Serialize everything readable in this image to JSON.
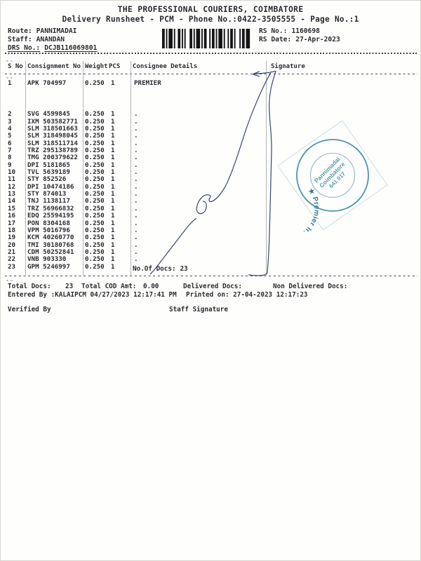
{
  "header": {
    "company": "THE PROFESSIONAL COURIERS, COIMBATORE",
    "subtitle": "Delivery Runsheet - PCM - Phone No.:0422-3505555 - Page No.:1",
    "route_label": "Route:",
    "route_value": "PANNIMADAI",
    "staff_label": "Staff:",
    "staff_value": "ANANDAN",
    "drs_label": "DRS No.:",
    "drs_value": "DCJB116069801",
    "rs_no_label": "RS No.:",
    "rs_no_value": "1160698",
    "rs_date_label": "RS Date:",
    "rs_date_value": "27-Apr-2023"
  },
  "table": {
    "columns": {
      "s_no": "S No",
      "consignment": "Consignment No",
      "weight": "Weight",
      "pcs": "PCS",
      "consignee": "Consignee Details",
      "signature": "Signature"
    },
    "rows": [
      {
        "s_no": "1",
        "consignment": "APK 704997",
        "weight": "0.250",
        "pcs": "1",
        "consignee": "PREMIER"
      },
      {
        "s_no": "2",
        "consignment": "SVG 4599845",
        "weight": "0.250",
        "pcs": "1",
        "consignee": "."
      },
      {
        "s_no": "3",
        "consignment": "IXM 503582771",
        "weight": "0.250",
        "pcs": "1",
        "consignee": "."
      },
      {
        "s_no": "4",
        "consignment": "SLM 318501663",
        "weight": "0.250",
        "pcs": "1",
        "consignee": "."
      },
      {
        "s_no": "5",
        "consignment": "SLM 318498045",
        "weight": "0.250",
        "pcs": "1",
        "consignee": "."
      },
      {
        "s_no": "6",
        "consignment": "SLM 318511714",
        "weight": "0.250",
        "pcs": "1",
        "consignee": "."
      },
      {
        "s_no": "7",
        "consignment": "TRZ 295138789",
        "weight": "0.250",
        "pcs": "1",
        "consignee": "."
      },
      {
        "s_no": "8",
        "consignment": "TMG 200379622",
        "weight": "0.250",
        "pcs": "1",
        "consignee": "."
      },
      {
        "s_no": "9",
        "consignment": "DPI 5181865",
        "weight": "0.250",
        "pcs": "1",
        "consignee": "."
      },
      {
        "s_no": "10",
        "consignment": "TVL 5639189",
        "weight": "0.250",
        "pcs": "1",
        "consignee": "."
      },
      {
        "s_no": "11",
        "consignment": "STY 852526",
        "weight": "0.250",
        "pcs": "1",
        "consignee": "."
      },
      {
        "s_no": "12",
        "consignment": "DPI 10474186",
        "weight": "0.250",
        "pcs": "1",
        "consignee": "."
      },
      {
        "s_no": "13",
        "consignment": "STY 874013",
        "weight": "0.250",
        "pcs": "1",
        "consignee": "."
      },
      {
        "s_no": "14",
        "consignment": "TNJ 1138117",
        "weight": "0.250",
        "pcs": "1",
        "consignee": "."
      },
      {
        "s_no": "15",
        "consignment": "TRZ 56966832",
        "weight": "0.250",
        "pcs": "1",
        "consignee": "."
      },
      {
        "s_no": "16",
        "consignment": "EDQ 25594195",
        "weight": "0.250",
        "pcs": "1",
        "consignee": "."
      },
      {
        "s_no": "17",
        "consignment": "PON 8304168",
        "weight": "0.250",
        "pcs": "1",
        "consignee": "."
      },
      {
        "s_no": "18",
        "consignment": "VPM 5016796",
        "weight": "0.250",
        "pcs": "1",
        "consignee": "."
      },
      {
        "s_no": "19",
        "consignment": "KCM 40260770",
        "weight": "0.250",
        "pcs": "1",
        "consignee": "."
      },
      {
        "s_no": "20",
        "consignment": "TMI 30180768",
        "weight": "0.250",
        "pcs": "1",
        "consignee": "."
      },
      {
        "s_no": "21",
        "consignment": "CDM 50252841",
        "weight": "0.250",
        "pcs": "1",
        "consignee": "."
      },
      {
        "s_no": "22",
        "consignment": "VNB 903330",
        "weight": "0.250",
        "pcs": "1",
        "consignee": "."
      },
      {
        "s_no": "23",
        "consignment": "GPM 5246997",
        "weight": "0.250",
        "pcs": "1",
        "consignee": "."
      }
    ],
    "no_of_docs_label": "No.Of Docs:",
    "no_of_docs_value": "23"
  },
  "summary": {
    "total_docs_label": "Total Docs:",
    "total_docs_value": "23",
    "cod_label": "Total COD Amt:",
    "cod_value": "0.00",
    "delivered_label": "Delivered Docs:",
    "non_delivered_label": "Non Delivered Docs:",
    "entered_by": "Entered By :KALAIPCM 04/27/2023 12:17:41 PM",
    "printed_on": "Printed on: 27-04-2023 12:17:23",
    "verified_by_label": "Verified By",
    "staff_signature_label": "Staff Signature"
  },
  "stamp": {
    "ring_text": "★ Premier Irrigation Adritec P Ltd.",
    "center_lines": [
      "Pannimadai",
      "Coimbatore",
      "641 017"
    ],
    "color": "#17789b"
  },
  "artifacts": {
    "mark1": "--",
    "mark2": "--",
    "mark3": "--"
  },
  "colors": {
    "ink": "#2b2b30",
    "signature_ink": "#34436b",
    "stamp_teal": "#17789b"
  }
}
